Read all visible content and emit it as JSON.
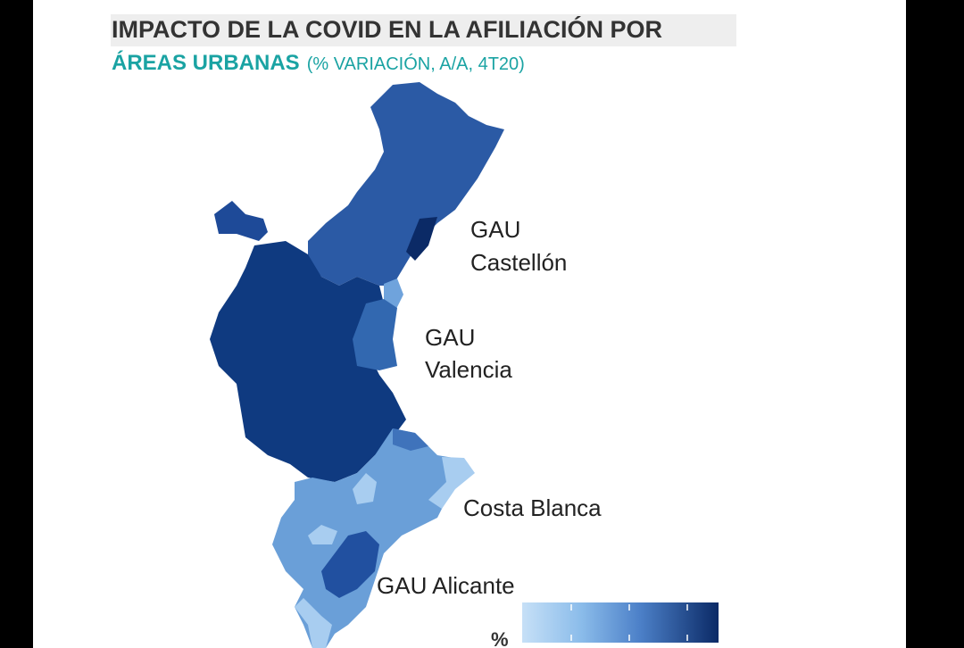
{
  "title": {
    "line1": "IMPACTO DE LA COVID EN LA AFILIACIÓN POR",
    "line2": "ÁREAS URBANAS",
    "line2_note": "(% VARIACIÓN, A/A, 4T20)"
  },
  "labels": [
    {
      "lines": [
        "GAU",
        "Castellón"
      ]
    },
    {
      "lines": [
        "GAU",
        "Valencia"
      ]
    },
    {
      "lines": [
        "Costa Blanca"
      ]
    },
    {
      "lines": [
        "GAU Alicante"
      ]
    }
  ],
  "legend": {
    "title": "%"
  }
}
